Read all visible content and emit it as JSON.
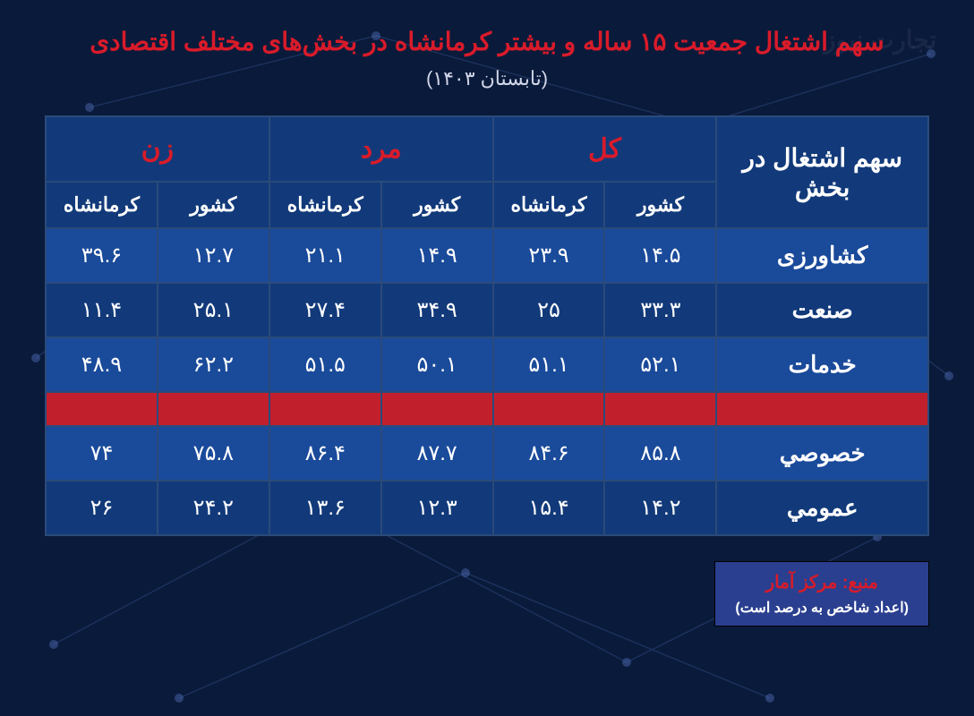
{
  "title_text": "سهم اشتغال جمعیت ۱۵ ساله و بیشتر کرمانشاه در بخش‌های مختلف اقتصادی",
  "title_color": "#d91b2a",
  "subtitle_text": "(تابستان ۱۴۰۳)",
  "subtitle_color": "#d0d6e8",
  "background_color": "#0a1a3a",
  "border_color": "#2a4a7a",
  "header_bg": "#123a7a",
  "row_bg_1": "#1a4a9a",
  "row_bg_2": "#123a7a",
  "separator_bg": "#c21f2d",
  "text_color": "#ffffff",
  "group_header_color": "#d91b2a",
  "rowhead_label": "سهم اشتغال در بخش",
  "groups": [
    {
      "label": "کل",
      "sub": [
        "کشور",
        "کرمانشاه"
      ]
    },
    {
      "label": "مرد",
      "sub": [
        "کشور",
        "کرمانشاه"
      ]
    },
    {
      "label": "زن",
      "sub": [
        "کشور",
        "کرمانشاه"
      ]
    }
  ],
  "rows_top": [
    {
      "label": "کشاورزی",
      "vals": [
        "۱۴.۵",
        "۲۳.۹",
        "۱۴.۹",
        "۲۱.۱",
        "۱۲.۷",
        "۳۹.۶"
      ]
    },
    {
      "label": "صنعت",
      "vals": [
        "۳۳.۳",
        "۲۵",
        "۳۴.۹",
        "۲۷.۴",
        "۲۵.۱",
        "۱۱.۴"
      ]
    },
    {
      "label": "خدمات",
      "vals": [
        "۵۲.۱",
        "۵۱.۱",
        "۵۰.۱",
        "۵۱.۵",
        "۶۲.۲",
        "۴۸.۹"
      ]
    }
  ],
  "rows_bottom": [
    {
      "label": "خصوصي",
      "vals": [
        "۸۵.۸",
        "۸۴.۶",
        "۸۷.۷",
        "۸۶.۴",
        "۷۵.۸",
        "۷۴"
      ]
    },
    {
      "label": "عمومي",
      "vals": [
        "۱۴.۲",
        "۱۵.۴",
        "۱۲.۳",
        "۱۳.۶",
        "۲۴.۲",
        "۲۶"
      ]
    }
  ],
  "source": {
    "line1": "منبع: مرکز آمار",
    "line1_color": "#d91b2a",
    "line2": "(اعداد شاخص به درصد است)",
    "line2_color": "#ffffff",
    "box_bg": "#2a3f8f"
  },
  "watermark_text": "تجارت نیوز",
  "col_widths": [
    "24%",
    "12.666%",
    "12.666%",
    "12.666%",
    "12.666%",
    "12.666%",
    "12.666%"
  ]
}
